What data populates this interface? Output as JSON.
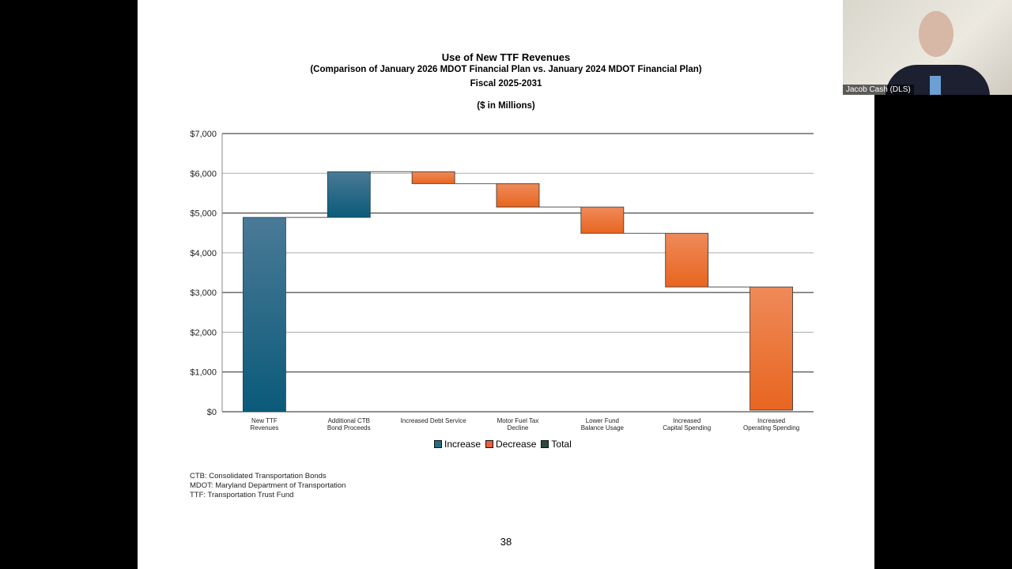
{
  "slide": {
    "title": "Use of New TTF Revenues",
    "subtitle": "(Comparison of January 2026 MDOT Financial Plan vs. January 2024 MDOT Financial Plan)",
    "fiscal": "Fiscal 2025-2031",
    "units": "($ in Millions)",
    "notes": [
      "CTB:  Consolidated Transportation Bonds",
      "MDOT:  Maryland Department of Transportation",
      "TTF:  Transportation Trust Fund"
    ],
    "page_number": "38"
  },
  "video": {
    "participant_name": "Jacob Cash (DLS)"
  },
  "chart_data": {
    "type": "waterfall",
    "title": "Use of New TTF Revenues",
    "categories": [
      "New TTF Revenues",
      "Additional CTB Bond Proceeds",
      "Increased Debt Service",
      "Motor Fuel Tax Decline",
      "Lower Fund Balance Usage",
      "Increased Capital Spending",
      "Increased Operating Spending"
    ],
    "category_lines": [
      [
        "New TTF",
        "Revenues"
      ],
      [
        "Additional CTB",
        "Bond Proceeds"
      ],
      [
        "Increased Debt Service"
      ],
      [
        "Motor Fuel Tax",
        "Decline"
      ],
      [
        "Lower Fund",
        "Balance Usage"
      ],
      [
        "Increased",
        "Capital Spending"
      ],
      [
        "Increased",
        "Operating Spending"
      ]
    ],
    "values": [
      4890,
      1150,
      -300,
      -590,
      -660,
      -1350,
      -3100
    ],
    "kinds": [
      "increase",
      "increase",
      "decrease",
      "decrease",
      "decrease",
      "decrease",
      "decrease"
    ],
    "ylim": [
      0,
      7000
    ],
    "yticks": [
      0,
      1000,
      2000,
      3000,
      4000,
      5000,
      6000,
      7000
    ],
    "ytick_labels": [
      "$0",
      "$1,000",
      "$2,000",
      "$3,000",
      "$4,000",
      "$5,000",
      "$6,000",
      "$7,000"
    ],
    "grid": true,
    "legend": [
      "Increase",
      "Decrease",
      "Total"
    ],
    "legend_placement": "bottom",
    "colors": {
      "increase": "#1f5f80",
      "decrease": "#ef7a3c",
      "total": "#2a4a40"
    }
  }
}
